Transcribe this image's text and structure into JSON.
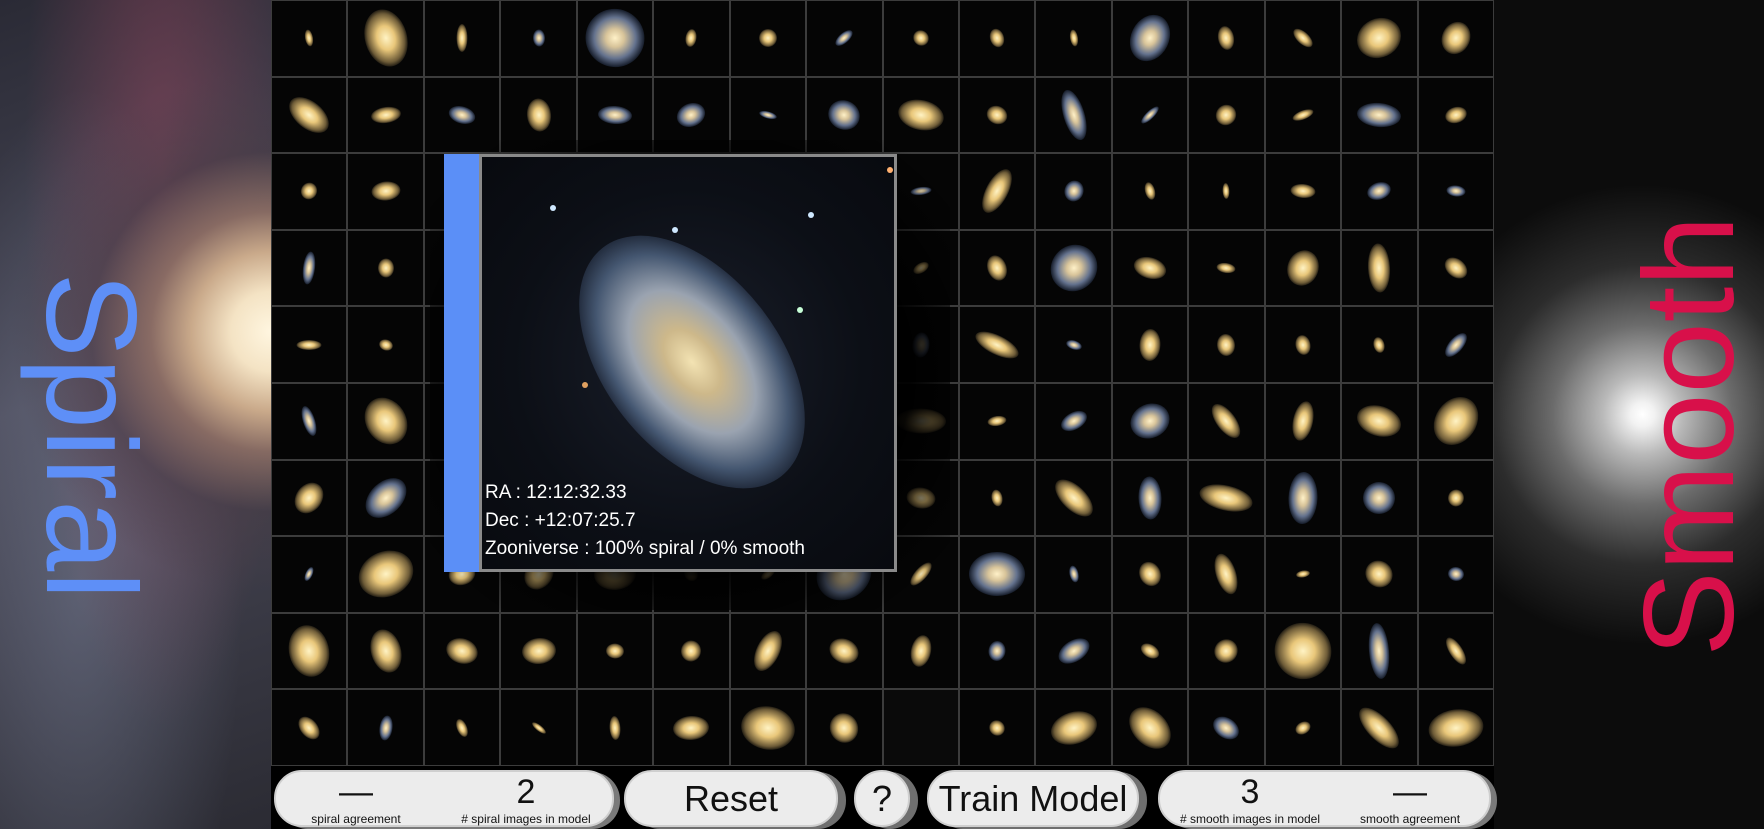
{
  "labels": {
    "left_word": "Spiral",
    "right_word": "Smooth"
  },
  "popup": {
    "ra": "RA : 12:12:32.33",
    "dec": "Dec : +12:07:25.7",
    "zooniverse": "Zooniverse : 100% spiral / 0% smooth"
  },
  "bottom": {
    "spiral_agreement_value": "—",
    "spiral_agreement_label": "spiral agreement",
    "spiral_count_value": "2",
    "spiral_count_label": "# spiral images in model",
    "reset_label": "Reset",
    "help_label": "?",
    "train_label": "Train Model",
    "smooth_count_value": "3",
    "smooth_count_label": "# smooth images in model",
    "smooth_agreement_value": "—",
    "smooth_agreement_label": "smooth agreement"
  },
  "colors": {
    "spiral": "#5e8ff7",
    "smooth": "#d8104a",
    "button_bg": "#ececec"
  },
  "grid_info": {
    "columns": 16,
    "rows": 10
  }
}
